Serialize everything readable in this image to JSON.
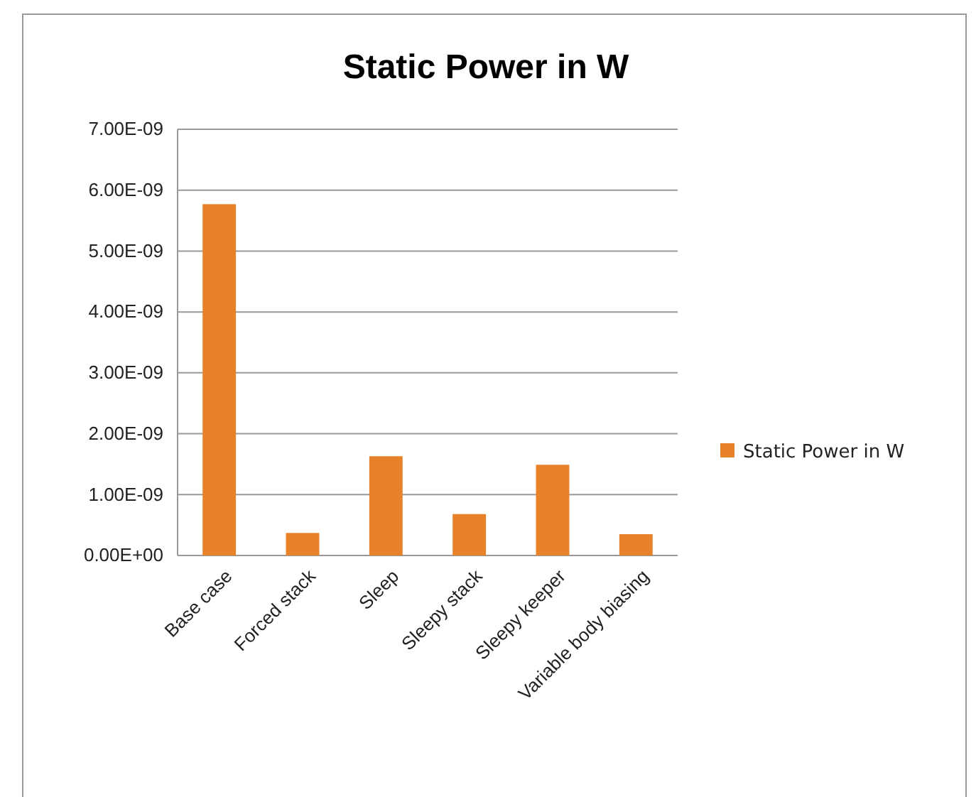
{
  "chart_data": {
    "type": "bar",
    "title": "Static Power in W",
    "categories": [
      "Base case",
      "Forced stack",
      "Sleep",
      "Sleepy stack",
      "Sleepy keeper",
      "Variable body biasing"
    ],
    "series": [
      {
        "name": "Static Power in W",
        "color": "#e8822a",
        "values": [
          5.77e-09,
          3.7e-10,
          1.63e-09,
          6.8e-10,
          1.49e-09,
          3.5e-10
        ]
      }
    ],
    "ylim": [
      0,
      7e-09
    ],
    "yticks": [
      {
        "value": 0,
        "label": "0.00E+00"
      },
      {
        "value": 1e-09,
        "label": "1.00E-09"
      },
      {
        "value": 2e-09,
        "label": "2.00E-09"
      },
      {
        "value": 3e-09,
        "label": "3.00E-09"
      },
      {
        "value": 4e-09,
        "label": "4.00E-09"
      },
      {
        "value": 5e-09,
        "label": "5.00E-09"
      },
      {
        "value": 6e-09,
        "label": "6.00E-09"
      },
      {
        "value": 7e-09,
        "label": "7.00E-09"
      }
    ],
    "grid": "y",
    "legend": "right"
  }
}
